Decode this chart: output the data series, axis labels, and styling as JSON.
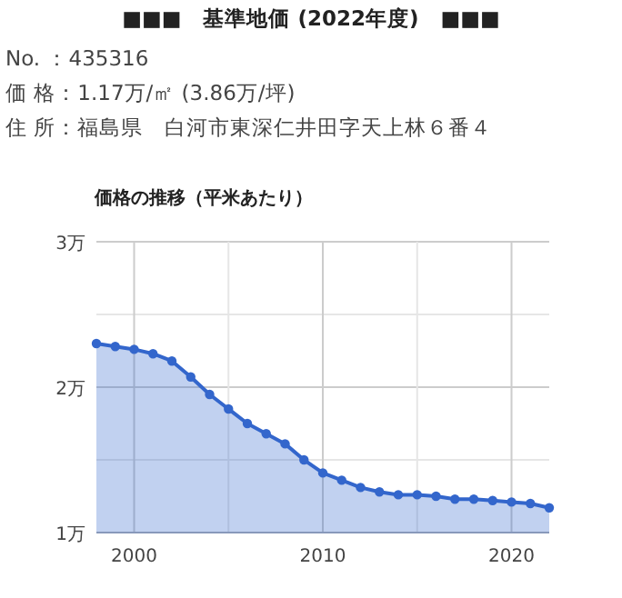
{
  "chart_data": {
    "type": "area",
    "title": "■■■　基準地価 (2022年度)　■■■",
    "subtitle": "価格の推移（平米あたり）",
    "annotations": [
      "No. ：435316",
      "価 格：1.17万/㎡ (3.86万/坪)",
      "住 所：福島県　白河市東深仁井田字天上林６番４"
    ],
    "x": [
      1998,
      1999,
      2000,
      2001,
      2002,
      2003,
      2004,
      2005,
      2006,
      2007,
      2008,
      2009,
      2010,
      2011,
      2012,
      2013,
      2014,
      2015,
      2016,
      2017,
      2018,
      2019,
      2020,
      2021,
      2022
    ],
    "series": [
      {
        "color": "#3366cc",
        "values": [
          2.3,
          2.28,
          2.26,
          2.23,
          2.18,
          2.07,
          1.95,
          1.85,
          1.75,
          1.68,
          1.61,
          1.5,
          1.41,
          1.36,
          1.31,
          1.28,
          1.26,
          1.26,
          1.25,
          1.23,
          1.23,
          1.22,
          1.21,
          1.2,
          1.17
        ]
      }
    ],
    "xlim": [
      1998,
      2022
    ],
    "ylim": [
      1,
      3
    ],
    "xticks": [
      2000,
      {
        "value": 2005,
        "label": null
      },
      2010,
      {
        "value": 2015,
        "label": null
      },
      2020
    ],
    "yticks": [
      {
        "value": 1,
        "label": "1万"
      },
      {
        "value": 1.5,
        "label": null
      },
      {
        "value": 2,
        "label": "2万"
      },
      {
        "value": 2.5,
        "label": null
      },
      {
        "value": 3,
        "label": "3万"
      }
    ],
    "grid": true,
    "marker": "circle"
  }
}
